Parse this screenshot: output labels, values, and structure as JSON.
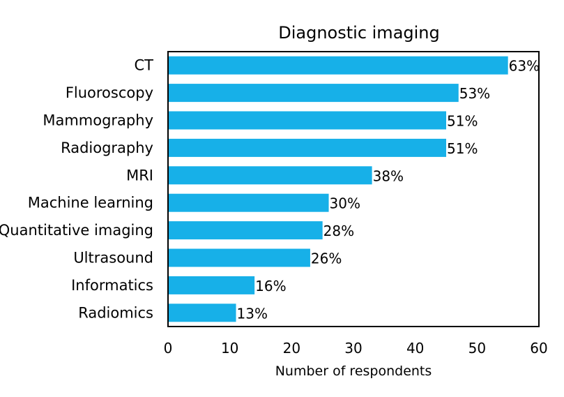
{
  "chart_data": {
    "type": "bar",
    "orientation": "horizontal",
    "title": "Diagnostic imaging",
    "xlabel": "Number of respondents",
    "ylabel": "",
    "xlim": [
      0,
      60
    ],
    "xticks": [
      0,
      10,
      20,
      30,
      40,
      50,
      60
    ],
    "grid": false,
    "bar_color": "#17B0E8",
    "categories": [
      "CT",
      "Fluoroscopy",
      "Mammography",
      "Radiography",
      "MRI",
      "Machine learning",
      "Quantitative imaging",
      "Ultrasound",
      "Informatics",
      "Radiomics"
    ],
    "values": [
      55,
      47,
      45,
      45,
      33,
      26,
      25,
      23,
      14,
      11
    ],
    "data_labels": [
      "63%",
      "53%",
      "51%",
      "51%",
      "38%",
      "30%",
      "28%",
      "26%",
      "16%",
      "13%"
    ]
  }
}
